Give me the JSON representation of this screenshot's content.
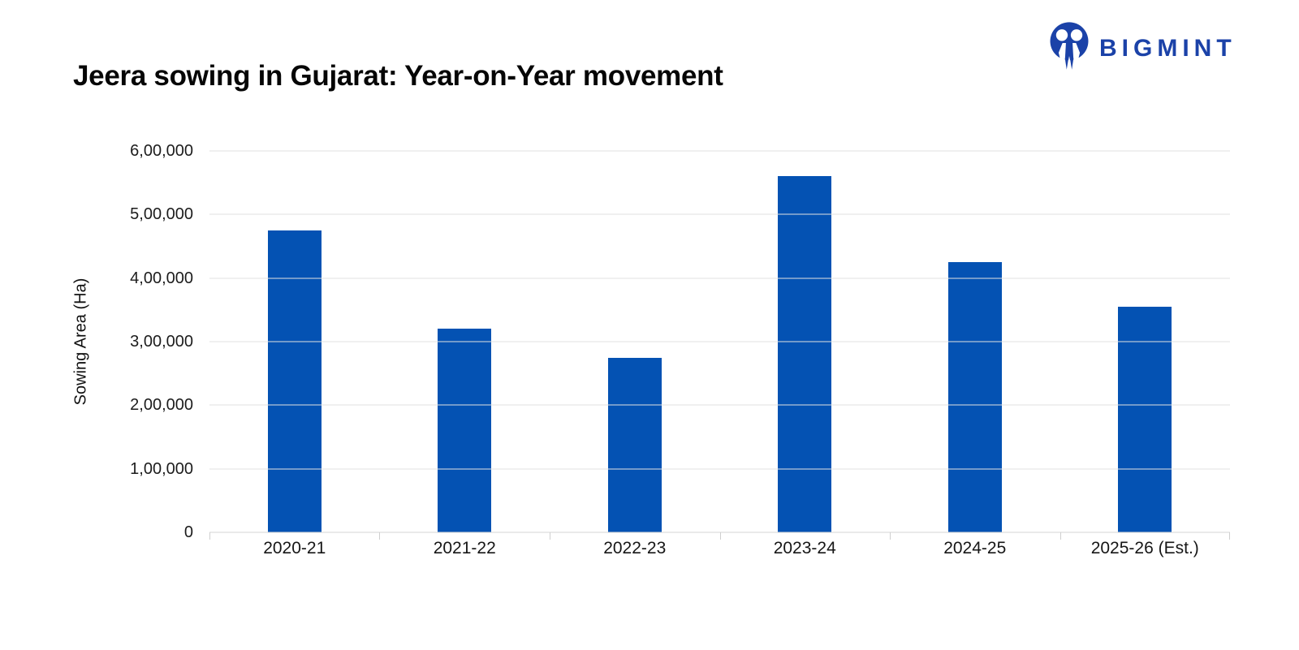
{
  "header": {
    "title": "Jeera sowing in Gujarat: Year-on-Year movement"
  },
  "logo": {
    "brand": "BIGMINT",
    "color": "#1b42a8"
  },
  "chart_data": {
    "type": "bar",
    "title": "Jeera sowing in Gujarat: Year-on-Year movement",
    "categories": [
      "2020-21",
      "2021-22",
      "2022-23",
      "2023-24",
      "2024-25",
      "2025-26 (Est.)"
    ],
    "values": [
      475000,
      320000,
      275000,
      560000,
      425000,
      355000
    ],
    "xlabel": "",
    "ylabel": "Sowing Area (Ha)",
    "ylim": [
      0,
      600000
    ],
    "ytick_values": [
      0,
      100000,
      200000,
      300000,
      400000,
      500000,
      600000
    ],
    "ytick_labels": [
      "0",
      "1,00,000",
      "2,00,000",
      "3,00,000",
      "4,00,000",
      "5,00,000",
      "6,00,000"
    ],
    "bar_color": "#0452b3",
    "gridline_color": "#e2e2e2",
    "grid": true,
    "legend": false
  }
}
